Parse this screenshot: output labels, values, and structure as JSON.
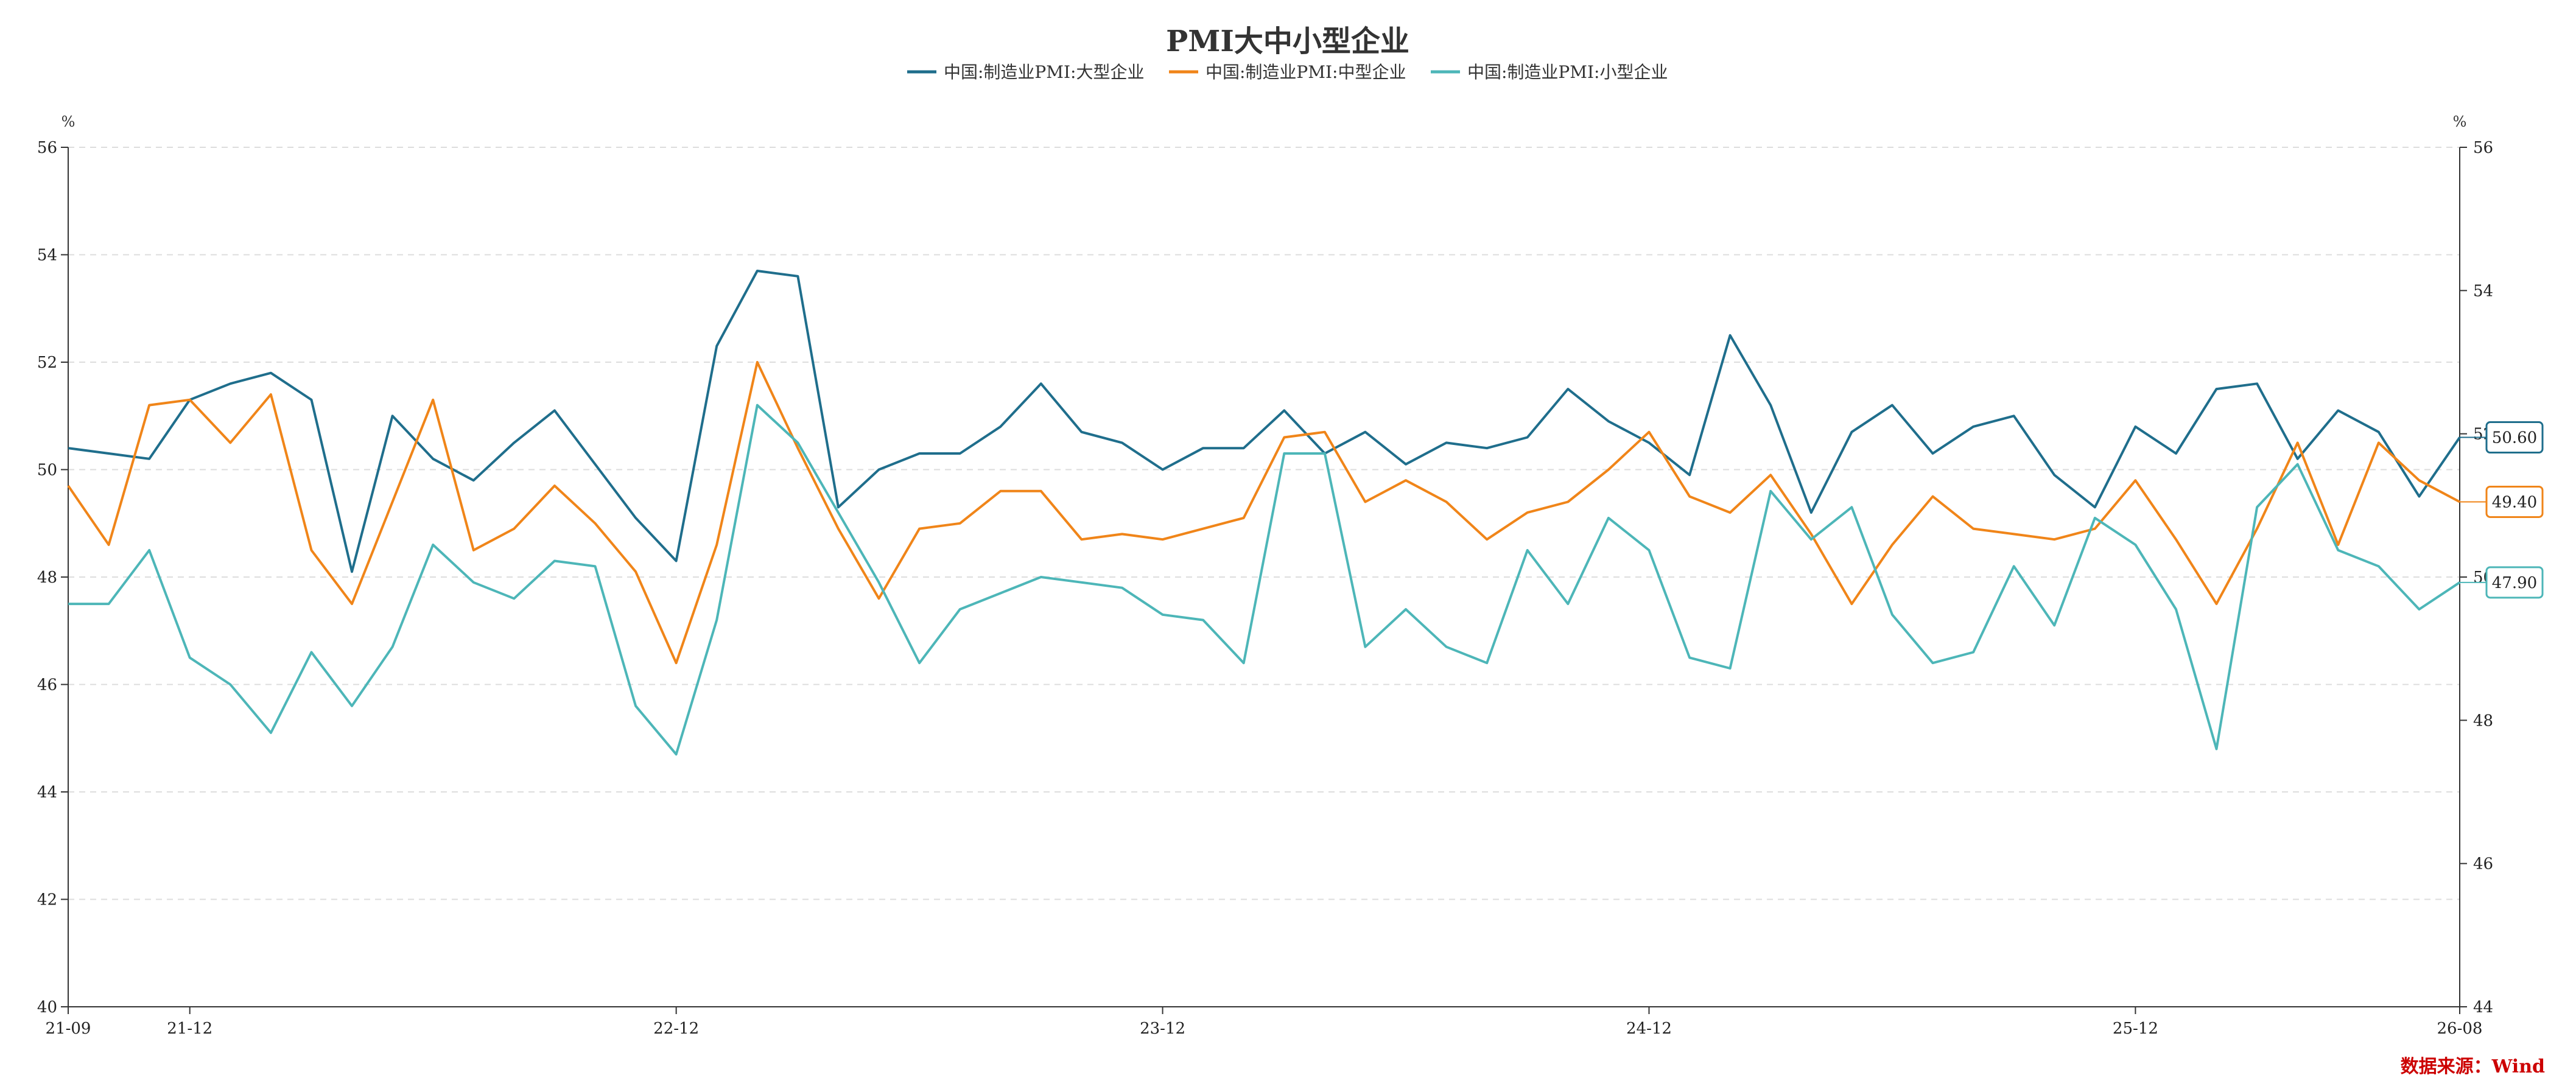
{
  "chart_data": {
    "type": "line",
    "title": "PMI大中小型企业",
    "y_unit_left": "%",
    "y_unit_right": "%",
    "ylim_left": [
      40,
      56
    ],
    "yticks_left": [
      "40",
      "42",
      "44",
      "46",
      "48",
      "50",
      "52",
      "54",
      "56"
    ],
    "ylim_right": [
      44,
      56
    ],
    "yticks_right": [
      "44",
      "46",
      "48",
      "50",
      "52",
      "54",
      "56"
    ],
    "x_ticks": [
      "21-09",
      "21-12",
      "22-12",
      "23-12",
      "24-12",
      "25-12",
      "26-08"
    ],
    "x": [
      "21-09",
      "21-10",
      "21-11",
      "21-12",
      "22-01",
      "22-02",
      "22-03",
      "22-04",
      "22-05",
      "22-06",
      "22-07",
      "22-08",
      "22-09",
      "22-10",
      "22-11",
      "22-12",
      "23-01",
      "23-02",
      "23-03",
      "23-04",
      "23-05",
      "23-06",
      "23-07",
      "23-08",
      "23-09",
      "23-10",
      "23-11",
      "23-12",
      "24-01",
      "24-02",
      "24-03",
      "24-04",
      "24-05",
      "24-06",
      "24-07",
      "24-08",
      "24-09",
      "24-10",
      "24-11",
      "24-12",
      "25-01",
      "25-02",
      "25-03",
      "25-04",
      "25-05",
      "25-06",
      "25-07",
      "25-08",
      "25-09",
      "25-10",
      "25-11",
      "25-12",
      "26-01",
      "26-02",
      "26-03",
      "26-04",
      "26-05",
      "26-06",
      "26-07",
      "26-08"
    ],
    "grid": true,
    "legend_position": "top-center",
    "source": "数据来源：Wind",
    "series": [
      {
        "name": "中国:制造业PMI:大型企业",
        "color": "#1f6e8c",
        "axis": "left",
        "end_label": "50.60",
        "values": [
          50.4,
          50.3,
          50.2,
          51.3,
          51.6,
          51.8,
          51.3,
          48.1,
          51.0,
          50.2,
          49.8,
          50.5,
          51.1,
          50.1,
          49.1,
          48.3,
          52.3,
          53.7,
          53.6,
          49.3,
          50.0,
          50.3,
          50.3,
          50.8,
          51.6,
          50.7,
          50.5,
          50.0,
          50.4,
          50.4,
          51.1,
          50.3,
          50.7,
          50.1,
          50.5,
          50.4,
          50.6,
          51.5,
          50.9,
          50.5,
          49.9,
          52.5,
          51.2,
          49.2,
          50.7,
          51.2,
          50.3,
          50.8,
          51.0,
          49.9,
          49.3,
          50.8,
          50.3,
          51.5,
          51.6,
          50.2,
          51.1,
          50.7,
          49.5,
          50.6
        ]
      },
      {
        "name": "中国:制造业PMI:中型企业",
        "color": "#f08519",
        "axis": "left",
        "end_label": "49.40",
        "values": [
          49.7,
          48.6,
          51.2,
          51.3,
          50.5,
          51.4,
          48.5,
          47.5,
          49.4,
          51.3,
          48.5,
          48.9,
          49.7,
          49.0,
          48.1,
          46.4,
          48.6,
          52.0,
          50.4,
          48.9,
          47.6,
          48.9,
          49.0,
          49.6,
          49.6,
          48.7,
          48.8,
          48.7,
          48.9,
          49.1,
          50.6,
          50.7,
          49.4,
          49.8,
          49.4,
          48.7,
          49.2,
          49.4,
          50.0,
          50.7,
          49.5,
          49.2,
          49.9,
          48.8,
          47.5,
          48.6,
          49.5,
          48.9,
          48.8,
          48.7,
          48.9,
          49.8,
          48.7,
          47.5,
          48.9,
          50.5,
          48.6,
          50.5,
          49.8,
          49.4
        ]
      },
      {
        "name": "中国:制造业PMI:小型企业",
        "color": "#4db6b8",
        "axis": "left",
        "end_label": "47.90",
        "values": [
          47.5,
          47.5,
          48.5,
          46.5,
          46.0,
          45.1,
          46.6,
          45.6,
          46.7,
          48.6,
          47.9,
          47.6,
          48.3,
          48.2,
          45.6,
          44.7,
          47.2,
          51.2,
          50.5,
          49.2,
          47.9,
          46.4,
          47.4,
          47.7,
          48.0,
          47.9,
          47.8,
          47.3,
          47.2,
          46.4,
          50.3,
          50.3,
          46.7,
          47.4,
          46.7,
          46.4,
          48.5,
          47.5,
          49.1,
          48.5,
          46.5,
          46.3,
          49.6,
          48.7,
          49.3,
          47.3,
          46.4,
          46.6,
          48.2,
          47.1,
          49.1,
          48.6,
          47.4,
          44.8,
          49.3,
          50.1,
          48.5,
          48.2,
          47.4,
          47.9
        ]
      }
    ]
  }
}
